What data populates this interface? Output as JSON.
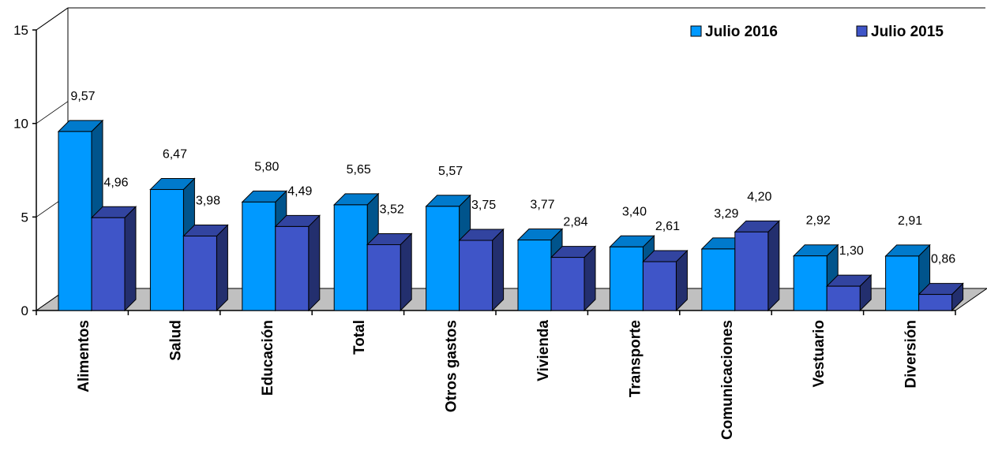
{
  "chart_data": {
    "type": "bar",
    "categories": [
      "Alimentos",
      "Salud",
      "Educación",
      "Total",
      "Otros gastos",
      "Vivienda",
      "Transporte",
      "Comunicaciones",
      "Vestuario",
      "Diversión"
    ],
    "series": [
      {
        "name": "Julio 2016",
        "values": [
          9.57,
          6.47,
          5.8,
          5.65,
          5.57,
          3.77,
          3.4,
          3.29,
          2.92,
          2.91
        ],
        "labels": [
          "9,57",
          "6,47",
          "5,80",
          "5,65",
          "5,57",
          "3,77",
          "3,40",
          "3,29",
          "2,92",
          "2,91"
        ],
        "color": "#0099ff"
      },
      {
        "name": "Julio 2015",
        "values": [
          4.96,
          3.98,
          4.49,
          3.52,
          3.75,
          2.84,
          2.61,
          4.2,
          1.3,
          0.86
        ],
        "labels": [
          "4,96",
          "3,98",
          "4,49",
          "3,52",
          "3,75",
          "2,84",
          "2,61",
          "4,20",
          "1,30",
          "0,86"
        ],
        "color": "#3f55c8"
      }
    ],
    "yticks": [
      "0",
      "5",
      "10",
      "15"
    ],
    "ylim": [
      0,
      15
    ],
    "legend": "top-right",
    "style": "3d-column",
    "floor_color": "#c0c0c0"
  }
}
